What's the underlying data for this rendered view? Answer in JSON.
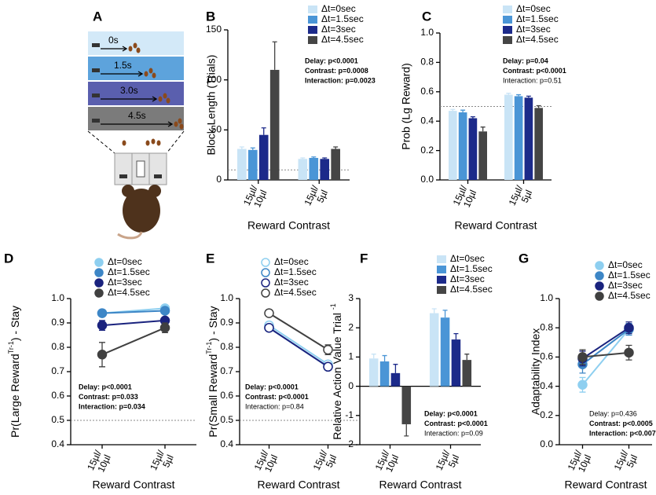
{
  "diagram": {
    "panel": "A",
    "delays": [
      "0s",
      "1.5s",
      "3.0s",
      "4.5s"
    ]
  },
  "chart_data": [
    {
      "panel": "B",
      "type": "bar",
      "ylabel": "Block Length (Trials)",
      "xlabel": "Reward Contrast",
      "categories": [
        [
          "15µl/",
          "10µl"
        ],
        [
          "15µl/",
          "5µl"
        ]
      ],
      "ylim": [
        0,
        150
      ],
      "yticks": [
        0,
        50,
        100,
        150
      ],
      "hline": 10,
      "series": [
        {
          "name": "Δt=0sec",
          "color": "#c9e4f6",
          "values": [
            31,
            21
          ],
          "errors": [
            2,
            1
          ]
        },
        {
          "name": "Δt=1.5sec",
          "color": "#4a95d6",
          "values": [
            30,
            22
          ],
          "errors": [
            2,
            1
          ]
        },
        {
          "name": "Δt=3sec",
          "color": "#1c2a8a",
          "values": [
            45,
            21
          ],
          "errors": [
            7,
            1
          ]
        },
        {
          "name": "Δt=4.5sec",
          "color": "#454545",
          "values": [
            110,
            31
          ],
          "errors": [
            28,
            2
          ]
        }
      ],
      "annotations": [
        {
          "text": "Delay: p<0.0001",
          "bold": true
        },
        {
          "text": "Contrast: p=0.0008",
          "bold": true
        },
        {
          "text": "Interaction: p=0.0023",
          "bold": true
        }
      ]
    },
    {
      "panel": "C",
      "type": "bar",
      "ylabel": "Prob (Lg Reward)",
      "xlabel": "Reward Contrast",
      "categories": [
        [
          "15µl/",
          "10µl"
        ],
        [
          "15µl/",
          "5µl"
        ]
      ],
      "ylim": [
        0,
        1
      ],
      "yticks": [
        {
          "value": 0,
          "label": "0.0"
        },
        0.2,
        0.4,
        0.6,
        0.8,
        {
          "value": 1,
          "label": "1.0"
        }
      ],
      "hline": 0.5,
      "series": [
        {
          "name": "Δt=0sec",
          "color": "#c9e4f6",
          "values": [
            0.47,
            0.58
          ],
          "errors": [
            0.01,
            0.01
          ]
        },
        {
          "name": "Δt=1.5sec",
          "color": "#4a95d6",
          "values": [
            0.46,
            0.57
          ],
          "errors": [
            0.015,
            0.01
          ]
        },
        {
          "name": "Δt=3sec",
          "color": "#1c2a8a",
          "values": [
            0.42,
            0.56
          ],
          "errors": [
            0.01,
            0.01
          ]
        },
        {
          "name": "Δt=4.5sec",
          "color": "#454545",
          "values": [
            0.33,
            0.49
          ],
          "errors": [
            0.03,
            0.015
          ]
        }
      ],
      "annotations": [
        {
          "text": "Delay: p=0.04",
          "bold": true
        },
        {
          "text": "Contrast: p<0.0001",
          "bold": true
        },
        {
          "text": "Interaction: p=0.51",
          "bold": false
        }
      ]
    },
    {
      "panel": "D",
      "type": "line",
      "markers": "filled",
      "ylabel": [
        "Pr(Large Reward",
        "Tr-1",
        ") - Stay"
      ],
      "xlabel": "Reward Contrast",
      "categories": [
        [
          "15µl/",
          "10µl"
        ],
        [
          "15µl/",
          "5µl"
        ]
      ],
      "ylim": [
        0.4,
        1
      ],
      "yticks": [
        0.4,
        0.5,
        0.6,
        0.7,
        0.8,
        0.9,
        {
          "value": 1,
          "label": "1.0"
        }
      ],
      "hline": 0.5,
      "series": [
        {
          "name": "Δt=0sec",
          "color": "#8ecff0",
          "values": [
            0.94,
            0.96
          ],
          "errors": [
            0.01,
            0.01
          ]
        },
        {
          "name": "Δt=1.5sec",
          "color": "#3d86c6",
          "values": [
            0.94,
            0.95
          ],
          "errors": [
            0.01,
            0.01
          ]
        },
        {
          "name": "Δt=3sec",
          "color": "#1a237e",
          "values": [
            0.89,
            0.91
          ],
          "errors": [
            0.02,
            0.01
          ]
        },
        {
          "name": "Δt=4.5sec",
          "color": "#404040",
          "values": [
            0.77,
            0.88
          ],
          "errors": [
            0.05,
            0.02
          ]
        }
      ],
      "annotations": [
        {
          "text": "Delay: p<0.0001",
          "bold": true
        },
        {
          "text": "Contrast: p=0.033",
          "bold": true
        },
        {
          "text": "Interaction: p=0.034",
          "bold": true
        }
      ]
    },
    {
      "panel": "E",
      "type": "line",
      "markers": "open",
      "ylabel": [
        "Pr(Small Reward",
        "Tr-1",
        ") - Stay"
      ],
      "xlabel": "Reward Contrast",
      "categories": [
        [
          "15µl/",
          "10µl"
        ],
        [
          "15µl/",
          "5µl"
        ]
      ],
      "ylim": [
        0.4,
        1
      ],
      "yticks": [
        0.4,
        0.5,
        0.6,
        0.7,
        0.8,
        0.9,
        {
          "value": 1,
          "label": "1.0"
        }
      ],
      "hline": 0.5,
      "series": [
        {
          "name": "Δt=0sec",
          "color": "#8ecff0",
          "values": [
            0.89,
            0.73
          ],
          "errors": [
            0.01,
            0.01
          ]
        },
        {
          "name": "Δt=1.5sec",
          "color": "#3d86c6",
          "values": [
            0.88,
            0.72
          ],
          "errors": [
            0.01,
            0.01
          ]
        },
        {
          "name": "Δt=3sec",
          "color": "#1a237e",
          "values": [
            0.88,
            0.72
          ],
          "errors": [
            0.01,
            0.01
          ]
        },
        {
          "name": "Δt=4.5sec",
          "color": "#404040",
          "values": [
            0.94,
            0.79
          ],
          "errors": [
            0.01,
            0.02
          ]
        }
      ],
      "annotations": [
        {
          "text": "Delay: p<0.0001",
          "bold": true
        },
        {
          "text": "Contrast: p<0.0001",
          "bold": true
        },
        {
          "text": "Interaction: p=0.84",
          "bold": false
        }
      ]
    },
    {
      "panel": "F",
      "type": "bar",
      "ylabel": [
        "Relative Action Value Trial ",
        "-1"
      ],
      "xlabel": "Reward Contrast",
      "categories": [
        [
          "15µl/",
          "10µl"
        ],
        [
          "15µl/",
          "5µl"
        ]
      ],
      "ylim": [
        -2,
        3
      ],
      "yticks": [
        -2,
        -1,
        0,
        1,
        2,
        3
      ],
      "series": [
        {
          "name": "Δt=0sec",
          "color": "#c9e4f6",
          "values": [
            0.95,
            2.5
          ],
          "errors": [
            0.15,
            0.15
          ]
        },
        {
          "name": "Δt=1.5sec",
          "color": "#4a95d6",
          "values": [
            0.85,
            2.35
          ],
          "errors": [
            0.2,
            0.25
          ]
        },
        {
          "name": "Δt=3sec",
          "color": "#1c2a8a",
          "values": [
            0.45,
            1.6
          ],
          "errors": [
            0.3,
            0.2
          ]
        },
        {
          "name": "Δt=4.5sec",
          "color": "#454545",
          "values": [
            -1.3,
            0.9
          ],
          "errors": [
            0.4,
            0.2
          ]
        }
      ],
      "annotations": [
        {
          "text": "Delay: p<0.0001",
          "bold": true
        },
        {
          "text": "Contrast: p<0.0001",
          "bold": true
        },
        {
          "text": "Interaction: p=0.09",
          "bold": false
        }
      ]
    },
    {
      "panel": "G",
      "type": "line",
      "markers": "filled",
      "ylabel": "Adaptability Index",
      "xlabel": "Reward Contrast",
      "categories": [
        [
          "15µl/",
          "10µl"
        ],
        [
          "15µl/",
          "5µl"
        ]
      ],
      "ylim": [
        0,
        1
      ],
      "yticks": [
        {
          "value": 0,
          "label": "0.0"
        },
        0.2,
        0.4,
        0.6,
        0.8,
        {
          "value": 1,
          "label": "1.0"
        }
      ],
      "series": [
        {
          "name": "Δt=0sec",
          "color": "#8ecff0",
          "values": [
            0.41,
            0.79
          ],
          "errors": [
            0.05,
            0.04
          ]
        },
        {
          "name": "Δt=1.5sec",
          "color": "#3d86c6",
          "values": [
            0.55,
            0.79
          ],
          "errors": [
            0.06,
            0.04
          ]
        },
        {
          "name": "Δt=3sec",
          "color": "#1a237e",
          "values": [
            0.59,
            0.8
          ],
          "errors": [
            0.05,
            0.04
          ]
        },
        {
          "name": "Δt=4.5sec",
          "color": "#404040",
          "values": [
            0.6,
            0.63
          ],
          "errors": [
            0.05,
            0.05
          ]
        }
      ],
      "annotations": [
        {
          "text": "Delay: p=0.436",
          "bold": false
        },
        {
          "text": "Contrast: p<0.0005",
          "bold": true
        },
        {
          "text": "Interaction: p<0.007",
          "bold": true
        }
      ]
    }
  ]
}
